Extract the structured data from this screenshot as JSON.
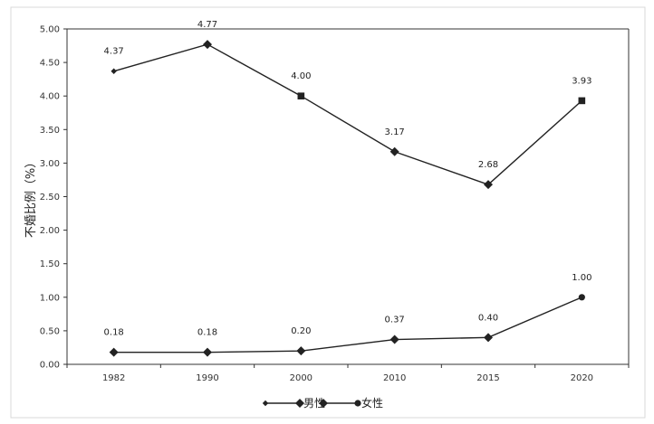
{
  "chart_data": {
    "type": "line",
    "title": "",
    "xlabel": "",
    "ylabel": "不婚比例（%）",
    "categories": [
      "1982",
      "1990",
      "2000",
      "2010",
      "2015",
      "2020"
    ],
    "ylim": [
      0,
      5
    ],
    "yticks": [
      "0.00",
      "0.50",
      "1.00",
      "1.50",
      "2.00",
      "2.50",
      "3.00",
      "3.50",
      "4.00",
      "4.50",
      "5.00"
    ],
    "grid": false,
    "legend_position": "bottom",
    "series": [
      {
        "name": "男性",
        "values": [
          4.37,
          4.77,
          4.0,
          3.17,
          2.68,
          3.93
        ],
        "labels": [
          "4.37",
          "4.77",
          "4.00",
          "3.17",
          "2.68",
          "3.93"
        ],
        "color": "#222222",
        "markers": [
          "small-diamond",
          "diamond",
          "square",
          "diamond",
          "diamond",
          "square"
        ]
      },
      {
        "name": "女性",
        "values": [
          0.18,
          0.18,
          0.2,
          0.37,
          0.4,
          1.0
        ],
        "labels": [
          "0.18",
          "0.18",
          "0.20",
          "0.37",
          "0.40",
          "1.00"
        ],
        "color": "#222222",
        "markers": [
          "diamond",
          "diamond",
          "diamond",
          "diamond",
          "diamond",
          "circle"
        ]
      }
    ]
  }
}
